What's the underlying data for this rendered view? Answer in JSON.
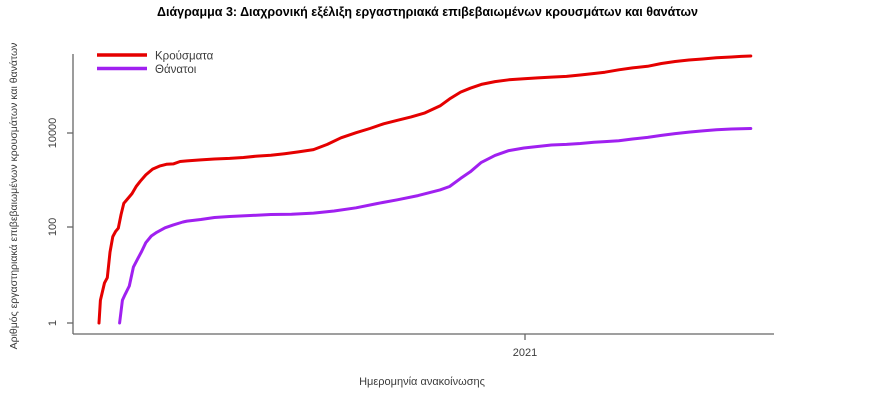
{
  "chart_data": {
    "type": "line",
    "title": "Διάγραμμα 3: Διαχρονική εξέλιξη εργαστηριακά επιβεβαιωμένων κρουσμάτων και θανάτων",
    "xlabel": "Ημερομηνία ανακοίνωσης",
    "ylabel": "Αριθμός εργαστηριακά επιβεβαιωμένων κρουσμάτων και θανάτων",
    "y_scale": "log10",
    "ylim": [
      1,
      500000
    ],
    "grid": false,
    "legend_position": "top-left",
    "x_range": [
      "2020-02-26",
      "2021-06-14"
    ],
    "y_ticks": [
      {
        "value": 1,
        "label": "1"
      },
      {
        "value": 100,
        "label": "100"
      },
      {
        "value": 10000,
        "label": "10000"
      }
    ],
    "x_ticks": [
      {
        "date": "2021-01-01",
        "label": "2021"
      }
    ],
    "colors": {
      "cases": "#e50000",
      "deaths": "#a020f0",
      "axis": "#666666",
      "tick_text": "#3c3c3c",
      "title_text": "#000000"
    },
    "series": [
      {
        "name": "Κρούσματα",
        "color": "#e50000",
        "points": [
          [
            "2020-02-26",
            1
          ],
          [
            "2020-02-27",
            3
          ],
          [
            "2020-02-28",
            4
          ],
          [
            "2020-03-01",
            7
          ],
          [
            "2020-03-03",
            9
          ],
          [
            "2020-03-05",
            31
          ],
          [
            "2020-03-07",
            66
          ],
          [
            "2020-03-09",
            84
          ],
          [
            "2020-03-11",
            99
          ],
          [
            "2020-03-13",
            190
          ],
          [
            "2020-03-15",
            331
          ],
          [
            "2020-03-18",
            418
          ],
          [
            "2020-03-21",
            530
          ],
          [
            "2020-03-24",
            743
          ],
          [
            "2020-03-27",
            966
          ],
          [
            "2020-03-31",
            1314
          ],
          [
            "2020-04-05",
            1735
          ],
          [
            "2020-04-10",
            2011
          ],
          [
            "2020-04-15",
            2192
          ],
          [
            "2020-04-20",
            2235
          ],
          [
            "2020-04-25",
            2517
          ],
          [
            "2020-04-30",
            2591
          ],
          [
            "2020-05-10",
            2716
          ],
          [
            "2020-05-20",
            2840
          ],
          [
            "2020-05-31",
            2915
          ],
          [
            "2020-06-10",
            3049
          ],
          [
            "2020-06-20",
            3256
          ],
          [
            "2020-06-30",
            3409
          ],
          [
            "2020-07-10",
            3672
          ],
          [
            "2020-07-20",
            4007
          ],
          [
            "2020-07-31",
            4477
          ],
          [
            "2020-08-10",
            5749
          ],
          [
            "2020-08-20",
            7934
          ],
          [
            "2020-08-31",
            10134
          ],
          [
            "2020-09-10",
            12452
          ],
          [
            "2020-09-20",
            15595
          ],
          [
            "2020-09-30",
            18475
          ],
          [
            "2020-10-10",
            21772
          ],
          [
            "2020-10-20",
            26469
          ],
          [
            "2020-10-31",
            37196
          ],
          [
            "2020-11-07",
            52254
          ],
          [
            "2020-11-15",
            72510
          ],
          [
            "2020-11-22",
            87812
          ],
          [
            "2020-11-30",
            105271
          ],
          [
            "2020-12-10",
            120605
          ],
          [
            "2020-12-20",
            131856
          ],
          [
            "2020-12-31",
            138850
          ],
          [
            "2021-01-10",
            144738
          ],
          [
            "2021-01-20",
            149918
          ],
          [
            "2021-01-31",
            155678
          ],
          [
            "2021-02-10",
            166067
          ],
          [
            "2021-02-20",
            179064
          ],
          [
            "2021-02-28",
            190235
          ],
          [
            "2021-03-10",
            214303
          ],
          [
            "2021-03-20",
            234565
          ],
          [
            "2021-03-31",
            254031
          ],
          [
            "2021-04-10",
            290422
          ],
          [
            "2021-04-20",
            320223
          ],
          [
            "2021-04-30",
            344288
          ],
          [
            "2021-05-10",
            362004
          ],
          [
            "2021-05-20",
            382063
          ],
          [
            "2021-05-31",
            398313
          ],
          [
            "2021-06-07",
            409368
          ],
          [
            "2021-06-14",
            417253
          ]
        ]
      },
      {
        "name": "Θάνατοι",
        "color": "#a020f0",
        "points": [
          [
            "2020-03-12",
            1
          ],
          [
            "2020-03-14",
            3
          ],
          [
            "2020-03-16",
            4
          ],
          [
            "2020-03-19",
            6
          ],
          [
            "2020-03-22",
            15
          ],
          [
            "2020-03-25",
            22
          ],
          [
            "2020-03-28",
            32
          ],
          [
            "2020-03-31",
            49
          ],
          [
            "2020-04-04",
            68
          ],
          [
            "2020-04-08",
            81
          ],
          [
            "2020-04-14",
            101
          ],
          [
            "2020-04-20",
            116
          ],
          [
            "2020-04-27",
            134
          ],
          [
            "2020-04-30",
            140
          ],
          [
            "2020-05-10",
            151
          ],
          [
            "2020-05-20",
            166
          ],
          [
            "2020-05-31",
            175
          ],
          [
            "2020-06-15",
            183
          ],
          [
            "2020-06-30",
            192
          ],
          [
            "2020-07-15",
            194
          ],
          [
            "2020-07-31",
            206
          ],
          [
            "2020-08-15",
            228
          ],
          [
            "2020-08-31",
            266
          ],
          [
            "2020-09-15",
            327
          ],
          [
            "2020-09-30",
            393
          ],
          [
            "2020-10-15",
            482
          ],
          [
            "2020-10-31",
            635
          ],
          [
            "2020-11-07",
            749
          ],
          [
            "2020-11-15",
            1106
          ],
          [
            "2020-11-22",
            1527
          ],
          [
            "2020-11-30",
            2406
          ],
          [
            "2020-12-10",
            3370
          ],
          [
            "2020-12-20",
            4257
          ],
          [
            "2020-12-31",
            4838
          ],
          [
            "2021-01-10",
            5195
          ],
          [
            "2021-01-20",
            5598
          ],
          [
            "2021-01-31",
            5764
          ],
          [
            "2021-02-10",
            6017
          ],
          [
            "2021-02-20",
            6371
          ],
          [
            "2021-02-28",
            6597
          ],
          [
            "2021-03-10",
            6886
          ],
          [
            "2021-03-20",
            7462
          ],
          [
            "2021-03-31",
            8093
          ],
          [
            "2021-04-10",
            8885
          ],
          [
            "2021-04-20",
            9713
          ],
          [
            "2021-04-30",
            10453
          ],
          [
            "2021-05-10",
            11089
          ],
          [
            "2021-05-20",
            11696
          ],
          [
            "2021-05-31",
            12122
          ],
          [
            "2021-06-07",
            12277
          ],
          [
            "2021-06-14",
            12442
          ]
        ]
      }
    ]
  }
}
